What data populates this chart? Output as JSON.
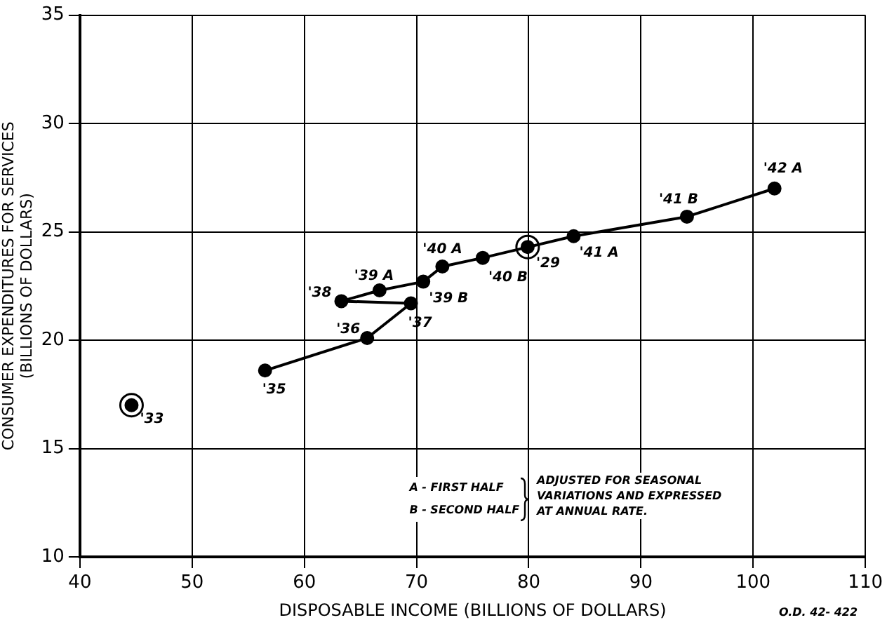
{
  "chart_data": {
    "type": "line",
    "xlabel": "DISPOSABLE INCOME (BILLIONS OF DOLLARS)",
    "ylabel": "CONSUMER EXPENDITURES FOR SERVICES\n(BILLIONS OF DOLLARS)",
    "series": [
      {
        "type": "line",
        "color": "#000000",
        "marker": "circle",
        "x": [
          56.5,
          65.6,
          69.5,
          63.3,
          66.7,
          70.6,
          72.3,
          75.9,
          84.0,
          94.1,
          101.9
        ],
        "values": [
          18.6,
          20.1,
          21.7,
          21.8,
          22.3,
          22.7,
          23.4,
          23.8,
          24.8,
          25.7,
          27.0
        ]
      },
      {
        "type": "scatter",
        "color": "#000000",
        "marker": "circle",
        "x": [
          44.6,
          79.9
        ],
        "values": [
          17.0,
          24.3
        ]
      }
    ],
    "xlim": [
      40,
      110
    ],
    "xticks": [
      40,
      50,
      60,
      70,
      80,
      90,
      100,
      110
    ],
    "ylim": [
      10,
      35
    ],
    "yticks": [
      10,
      15,
      20,
      25,
      30,
      35
    ],
    "grid": true,
    "legend": false,
    "annotations": [
      {
        "text": "'35",
        "x": 56.5,
        "y": 18.6
      },
      {
        "text": "'36",
        "x": 65.6,
        "y": 20.1
      },
      {
        "text": "'37",
        "x": 69.5,
        "y": 21.7
      },
      {
        "text": "'38",
        "x": 63.3,
        "y": 21.8
      },
      {
        "text": "'39 A",
        "x": 66.7,
        "y": 22.3
      },
      {
        "text": "'39 B",
        "x": 70.6,
        "y": 22.7
      },
      {
        "text": "'40 A",
        "x": 72.3,
        "y": 23.4
      },
      {
        "text": "'40 B",
        "x": 75.9,
        "y": 23.8
      },
      {
        "text": "'41 A",
        "x": 84.0,
        "y": 24.8
      },
      {
        "text": "'41 B",
        "x": 94.1,
        "y": 25.7
      },
      {
        "text": "'42 A",
        "x": 101.9,
        "y": 27.0
      },
      {
        "text": "'33",
        "x": 44.6,
        "y": 17.0
      },
      {
        "text": "'29",
        "x": 79.9,
        "y": 24.3
      },
      "A - FIRST HALF\nB - SECOND HALF",
      "ADJUSTED FOR SEASONAL\nVARIATIONS AND EXPRESSED\nAT ANNUAL RATE.",
      "O.D. 42- 422"
    ]
  }
}
